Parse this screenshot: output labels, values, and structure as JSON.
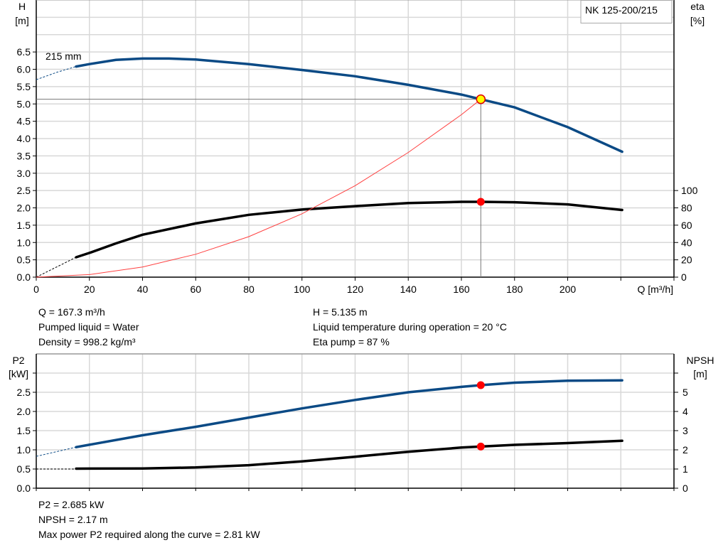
{
  "chart_data": [
    {
      "type": "line",
      "title": "NK 125-200/215",
      "xlabel": "Q [m³/h]",
      "ylabel_left": [
        "H",
        "[m]"
      ],
      "ylabel_right": [
        "eta",
        "[%]"
      ],
      "xlim": [
        0,
        240
      ],
      "ylim_left": [
        0,
        8
      ],
      "ylim_right_eta": [
        0,
        320
      ],
      "x_ticks": [
        0,
        20,
        40,
        60,
        80,
        100,
        120,
        140,
        160,
        180,
        200,
        220,
        240
      ],
      "x_tick_labels": [
        "0",
        "20",
        "40",
        "60",
        "80",
        "100",
        "120",
        "140",
        "160",
        "180",
        "200",
        "",
        ""
      ],
      "y_ticks_left": [
        "0.0",
        "0.5",
        "1.0",
        "1.5",
        "2.0",
        "2.5",
        "3.0",
        "3.5",
        "4.0",
        "4.5",
        "5.0",
        "5.5",
        "6.0",
        "6.5"
      ],
      "y_ticks_right": [
        "0",
        "20",
        "40",
        "60",
        "80",
        "100"
      ],
      "grid": true,
      "curve_label": "215 mm",
      "series": [
        {
          "key": "H",
          "color": "#0b4a85",
          "extrapolated": [
            [
              0,
              5.7
            ],
            [
              8,
              5.92
            ],
            [
              15,
              6.08
            ]
          ],
          "points": [
            [
              15,
              6.08
            ],
            [
              20,
              6.15
            ],
            [
              30,
              6.27
            ],
            [
              40,
              6.31
            ],
            [
              50,
              6.31
            ],
            [
              60,
              6.28
            ],
            [
              80,
              6.15
            ],
            [
              100,
              5.98
            ],
            [
              120,
              5.8
            ],
            [
              140,
              5.55
            ],
            [
              160,
              5.27
            ],
            [
              167.3,
              5.135
            ],
            [
              180,
              4.9
            ],
            [
              200,
              4.33
            ],
            [
              220.5,
              3.62
            ]
          ]
        },
        {
          "key": "eta",
          "axis": "right",
          "color": "#000000",
          "extrapolated": [
            [
              0,
              0
            ],
            [
              15,
              23
            ]
          ],
          "points": [
            [
              15,
              23
            ],
            [
              20,
              28
            ],
            [
              30,
              39
            ],
            [
              40,
              49
            ],
            [
              60,
              62
            ],
            [
              80,
              72
            ],
            [
              100,
              78
            ],
            [
              120,
              82
            ],
            [
              140,
              85.5
            ],
            [
              160,
              87
            ],
            [
              167.3,
              87
            ],
            [
              180,
              86.5
            ],
            [
              200,
              84
            ],
            [
              220.5,
              77.5
            ]
          ]
        },
        {
          "key": "system",
          "color": "#ff4040",
          "points": [
            [
              0,
              0
            ],
            [
              20,
              0.073
            ],
            [
              40,
              0.294
            ],
            [
              60,
              0.66
            ],
            [
              80,
              1.17
            ],
            [
              100,
              1.83
            ],
            [
              120,
              2.64
            ],
            [
              140,
              3.6
            ],
            [
              160,
              4.69
            ],
            [
              167.3,
              5.135
            ]
          ]
        }
      ],
      "duty_point": {
        "Q": 167.3,
        "H": 5.135,
        "eta": 87,
        "marker_color": "#ffff00",
        "marker_edge": "#e00000",
        "eta_marker_color": "#ff0000"
      }
    },
    {
      "type": "line",
      "xlim": [
        0,
        240
      ],
      "ylim_left": [
        0,
        3.5
      ],
      "ylim_right": [
        0,
        7
      ],
      "ylabel_left": [
        "P2",
        "[kW]"
      ],
      "ylabel_right": [
        "NPSH",
        "[m]"
      ],
      "y_ticks_left": [
        "0.0",
        "0.5",
        "1.0",
        "1.5",
        "2.0",
        "2.5"
      ],
      "y_ticks_right": [
        "0",
        "1",
        "2",
        "3",
        "4",
        "5"
      ],
      "grid": true,
      "series": [
        {
          "key": "P2",
          "color": "#0b4a85",
          "extrapolated": [
            [
              0,
              0.83
            ],
            [
              15,
              1.07
            ]
          ],
          "points": [
            [
              15,
              1.07
            ],
            [
              40,
              1.38
            ],
            [
              60,
              1.6
            ],
            [
              80,
              1.84
            ],
            [
              100,
              2.08
            ],
            [
              120,
              2.3
            ],
            [
              140,
              2.5
            ],
            [
              160,
              2.64
            ],
            [
              167.3,
              2.685
            ],
            [
              180,
              2.75
            ],
            [
              200,
              2.8
            ],
            [
              220.5,
              2.81
            ]
          ]
        },
        {
          "key": "NPSH",
          "axis": "right",
          "color": "#000000",
          "extrapolated": [
            [
              0,
              1.0
            ],
            [
              15,
              1.0
            ]
          ],
          "points": [
            [
              15,
              1.02
            ],
            [
              40,
              1.03
            ],
            [
              60,
              1.08
            ],
            [
              80,
              1.2
            ],
            [
              100,
              1.4
            ],
            [
              120,
              1.64
            ],
            [
              140,
              1.9
            ],
            [
              160,
              2.12
            ],
            [
              167.3,
              2.17
            ],
            [
              180,
              2.26
            ],
            [
              200,
              2.35
            ],
            [
              220.5,
              2.47
            ]
          ]
        }
      ],
      "duty_point": {
        "Q": 167.3,
        "P2": 2.685,
        "NPSH": 2.17,
        "marker_color": "#ff0000"
      }
    }
  ],
  "info": {
    "q": "Q = 167.3 m³/h",
    "liquid": "Pumped liquid = Water",
    "density": "Density = 998.2 kg/m³",
    "h": "H = 5.135 m",
    "temp": "Liquid temperature during operation = 20 °C",
    "eta": "Eta pump = 87 %",
    "p2": "P2 = 2.685 kW",
    "npsh": "NPSH = 2.17 m",
    "maxp2": "Max power P2 required along the curve = 2.81 kW"
  }
}
